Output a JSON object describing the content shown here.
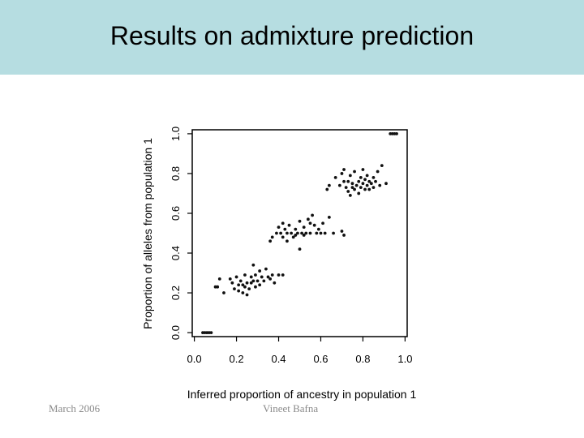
{
  "slide": {
    "title": "Results on admixture prediction",
    "footer_left": "March 2006",
    "footer_center": "Vineet Bafna"
  },
  "colors": {
    "title_bar": "#b6dde1",
    "points": "#111111",
    "footer_text": "#8a8a8a"
  },
  "chart_data": {
    "type": "scatter",
    "title": "",
    "xlabel": "Inferred proportion of ancestry in population 1",
    "ylabel": "Proportion of alleles from population 1",
    "xlim": [
      -0.01,
      1.01
    ],
    "ylim": [
      -0.02,
      1.02
    ],
    "xticks": [
      0.0,
      0.2,
      0.4,
      0.6,
      0.8,
      1.0
    ],
    "yticks": [
      0.0,
      0.2,
      0.4,
      0.6,
      0.8,
      1.0
    ],
    "xtick_labels": [
      "0.0",
      "0.2",
      "0.4",
      "0.6",
      "0.8",
      "1.0"
    ],
    "ytick_labels": [
      "0.0",
      "0.2",
      "0.4",
      "0.6",
      "0.8",
      "1.0"
    ],
    "grid": false,
    "points": [
      [
        0.04,
        0.0
      ],
      [
        0.05,
        0.0
      ],
      [
        0.06,
        0.0
      ],
      [
        0.07,
        0.0
      ],
      [
        0.08,
        0.0
      ],
      [
        0.93,
        1.0
      ],
      [
        0.94,
        1.0
      ],
      [
        0.95,
        1.0
      ],
      [
        0.96,
        1.0
      ],
      [
        0.1,
        0.23
      ],
      [
        0.11,
        0.23
      ],
      [
        0.12,
        0.27
      ],
      [
        0.14,
        0.2
      ],
      [
        0.17,
        0.27
      ],
      [
        0.18,
        0.25
      ],
      [
        0.19,
        0.22
      ],
      [
        0.2,
        0.28
      ],
      [
        0.21,
        0.21
      ],
      [
        0.21,
        0.24
      ],
      [
        0.22,
        0.26
      ],
      [
        0.23,
        0.2
      ],
      [
        0.23,
        0.24
      ],
      [
        0.24,
        0.29
      ],
      [
        0.24,
        0.23
      ],
      [
        0.25,
        0.19
      ],
      [
        0.25,
        0.25
      ],
      [
        0.26,
        0.22
      ],
      [
        0.27,
        0.28
      ],
      [
        0.27,
        0.25
      ],
      [
        0.28,
        0.34
      ],
      [
        0.28,
        0.26
      ],
      [
        0.29,
        0.23
      ],
      [
        0.29,
        0.29
      ],
      [
        0.3,
        0.26
      ],
      [
        0.31,
        0.24
      ],
      [
        0.31,
        0.31
      ],
      [
        0.32,
        0.28
      ],
      [
        0.33,
        0.26
      ],
      [
        0.34,
        0.32
      ],
      [
        0.35,
        0.28
      ],
      [
        0.36,
        0.27
      ],
      [
        0.37,
        0.29
      ],
      [
        0.38,
        0.25
      ],
      [
        0.4,
        0.29
      ],
      [
        0.42,
        0.29
      ],
      [
        0.36,
        0.46
      ],
      [
        0.37,
        0.48
      ],
      [
        0.39,
        0.5
      ],
      [
        0.4,
        0.53
      ],
      [
        0.41,
        0.5
      ],
      [
        0.42,
        0.55
      ],
      [
        0.42,
        0.48
      ],
      [
        0.43,
        0.52
      ],
      [
        0.44,
        0.5
      ],
      [
        0.44,
        0.46
      ],
      [
        0.45,
        0.54
      ],
      [
        0.46,
        0.5
      ],
      [
        0.47,
        0.48
      ],
      [
        0.48,
        0.52
      ],
      [
        0.48,
        0.49
      ],
      [
        0.49,
        0.5
      ],
      [
        0.5,
        0.42
      ],
      [
        0.5,
        0.56
      ],
      [
        0.51,
        0.5
      ],
      [
        0.52,
        0.53
      ],
      [
        0.52,
        0.49
      ],
      [
        0.53,
        0.5
      ],
      [
        0.54,
        0.57
      ],
      [
        0.55,
        0.5
      ],
      [
        0.55,
        0.55
      ],
      [
        0.56,
        0.59
      ],
      [
        0.57,
        0.54
      ],
      [
        0.58,
        0.5
      ],
      [
        0.59,
        0.52
      ],
      [
        0.6,
        0.5
      ],
      [
        0.61,
        0.55
      ],
      [
        0.62,
        0.5
      ],
      [
        0.64,
        0.58
      ],
      [
        0.66,
        0.5
      ],
      [
        0.7,
        0.51
      ],
      [
        0.71,
        0.49
      ],
      [
        0.63,
        0.72
      ],
      [
        0.64,
        0.74
      ],
      [
        0.67,
        0.78
      ],
      [
        0.69,
        0.74
      ],
      [
        0.7,
        0.8
      ],
      [
        0.71,
        0.76
      ],
      [
        0.71,
        0.82
      ],
      [
        0.72,
        0.73
      ],
      [
        0.73,
        0.71
      ],
      [
        0.73,
        0.76
      ],
      [
        0.74,
        0.69
      ],
      [
        0.74,
        0.79
      ],
      [
        0.75,
        0.73
      ],
      [
        0.75,
        0.75
      ],
      [
        0.76,
        0.81
      ],
      [
        0.76,
        0.72
      ],
      [
        0.77,
        0.74
      ],
      [
        0.78,
        0.7
      ],
      [
        0.78,
        0.76
      ],
      [
        0.79,
        0.78
      ],
      [
        0.79,
        0.73
      ],
      [
        0.8,
        0.75
      ],
      [
        0.8,
        0.82
      ],
      [
        0.81,
        0.72
      ],
      [
        0.81,
        0.77
      ],
      [
        0.82,
        0.74
      ],
      [
        0.82,
        0.79
      ],
      [
        0.83,
        0.76
      ],
      [
        0.83,
        0.72
      ],
      [
        0.84,
        0.75
      ],
      [
        0.85,
        0.78
      ],
      [
        0.85,
        0.73
      ],
      [
        0.86,
        0.76
      ],
      [
        0.87,
        0.81
      ],
      [
        0.88,
        0.74
      ],
      [
        0.89,
        0.84
      ],
      [
        0.91,
        0.75
      ]
    ]
  }
}
